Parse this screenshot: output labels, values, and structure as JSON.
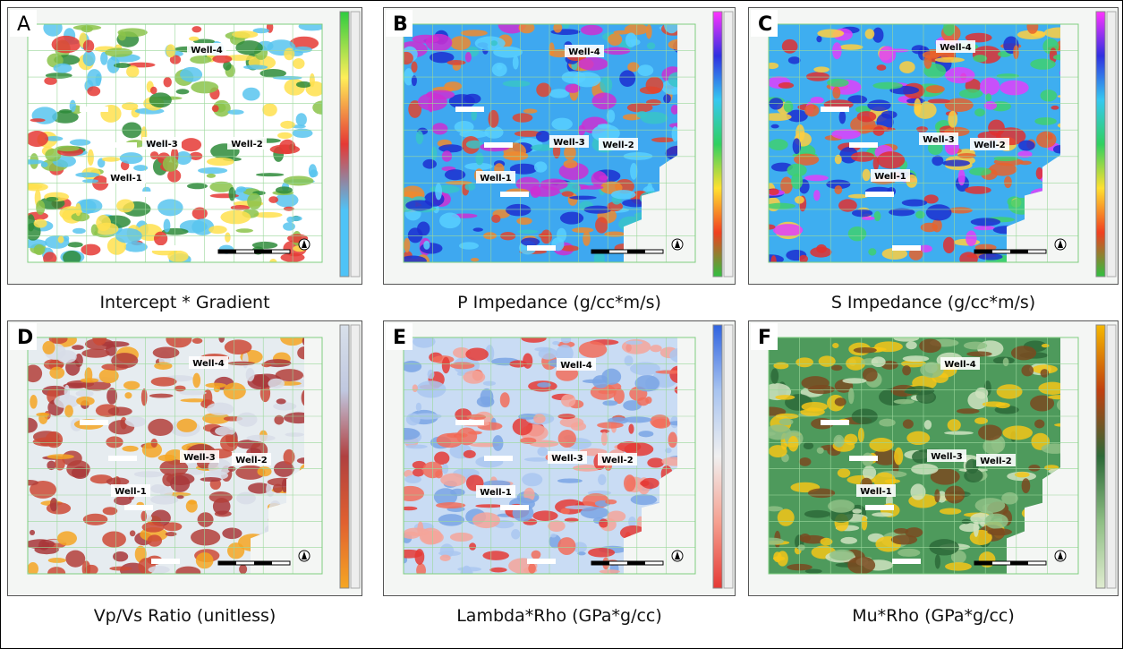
{
  "panels": [
    {
      "letter": "A",
      "caption": "Intercept * Gradient",
      "wells": [
        "Well-4",
        "Well-3",
        "Well-2",
        "Well-1"
      ]
    },
    {
      "letter": "B",
      "caption": "P Impedance (g/cc*m/s)",
      "wells": [
        "Well-4",
        "Well-3",
        "Well-2",
        "Well-1"
      ]
    },
    {
      "letter": "C",
      "caption": "S Impedance (g/cc*m/s)",
      "wells": [
        "Well-4",
        "Well-3",
        "Well-2",
        "Well-1"
      ]
    },
    {
      "letter": "D",
      "caption": "Vp/Vs Ratio (unitless)",
      "wells": [
        "Well-4",
        "Well-3",
        "Well-2",
        "Well-1"
      ]
    },
    {
      "letter": "E",
      "caption": "Lambda*Rho (GPa*g/cc)",
      "wells": [
        "Well-4",
        "Well-3",
        "Well-2",
        "Well-1"
      ]
    },
    {
      "letter": "F",
      "caption": "Mu*Rho (GPa*g/cc)",
      "wells": [
        "Well-4",
        "Well-3",
        "Well-2",
        "Well-1"
      ]
    }
  ]
}
